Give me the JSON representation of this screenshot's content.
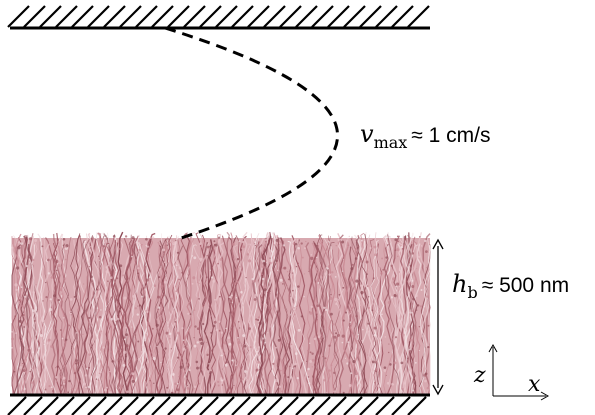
{
  "labels": {
    "velocity": {
      "symbol": "v",
      "subscript": "max",
      "relation": "≈ 1 cm/s"
    },
    "brush_height": {
      "symbol": "h",
      "subscript": "b",
      "relation": "≈ 500 nm"
    },
    "axes": {
      "vertical": "z",
      "horizontal": "x"
    }
  },
  "colors": {
    "walls": "#000000",
    "profile": "#000000",
    "brush_base": "#c98a94",
    "brush_light": "#e9c6cc",
    "brush_dark": "#a35b67"
  },
  "icons": {
    "top_wall": "hatched-wall-icon",
    "bottom_wall": "hatched-wall-icon",
    "height_arrow": "double-arrow-icon",
    "axes": "coordinate-axes-icon"
  }
}
